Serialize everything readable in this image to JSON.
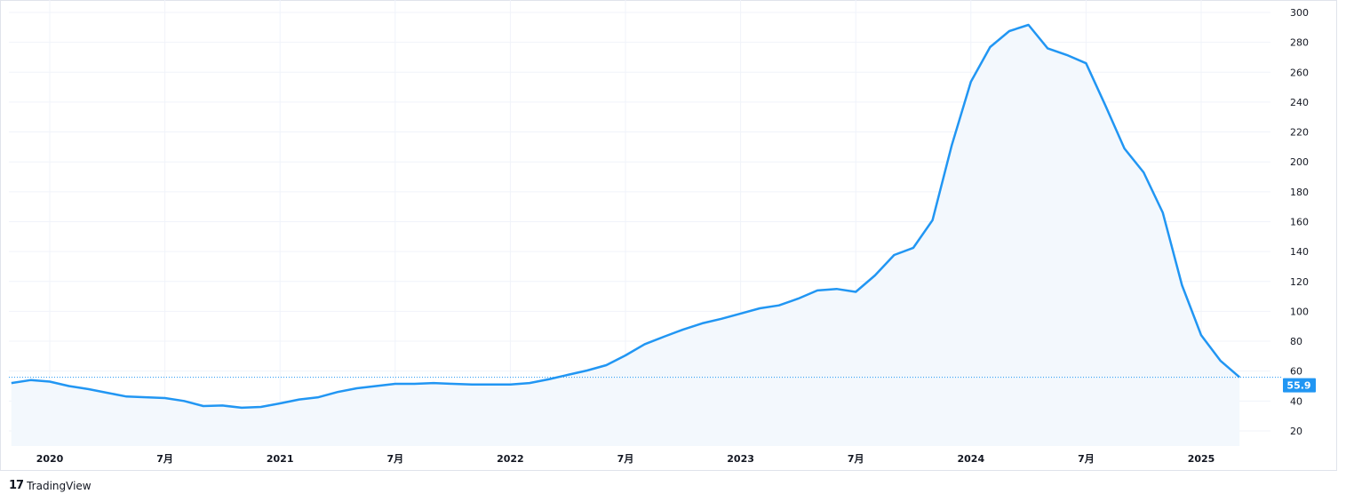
{
  "branding": {
    "logo_text": "TradingView"
  },
  "colors": {
    "line": "#2196f3",
    "fill": "#f3f8fd",
    "grid": "#f0f3fa",
    "last_label_bg": "#2196f3"
  },
  "chart_data": {
    "type": "area",
    "title": "",
    "xlabel": "",
    "ylabel": "",
    "ylim": [
      10,
      305
    ],
    "grid": true,
    "y_ticks": [
      "300",
      "280",
      "260",
      "240",
      "220",
      "200",
      "180",
      "160",
      "140",
      "120",
      "100",
      "80",
      "60",
      "40",
      "20"
    ],
    "x_ticks": [
      {
        "label": "2020",
        "date": "2020-01"
      },
      {
        "label": "7月",
        "date": "2020-07"
      },
      {
        "label": "2021",
        "date": "2021-01"
      },
      {
        "label": "7月",
        "date": "2021-07"
      },
      {
        "label": "2022",
        "date": "2022-01"
      },
      {
        "label": "7月",
        "date": "2022-07"
      },
      {
        "label": "2023",
        "date": "2023-01"
      },
      {
        "label": "7月",
        "date": "2023-07"
      },
      {
        "label": "2024",
        "date": "2024-01"
      },
      {
        "label": "7月",
        "date": "2024-07"
      },
      {
        "label": "2025",
        "date": "2025-01"
      }
    ],
    "last_value_label": "55.9",
    "series": [
      {
        "x": [
          "2019-11",
          "2019-12",
          "2020-01",
          "2020-02",
          "2020-03",
          "2020-04",
          "2020-05",
          "2020-06",
          "2020-07",
          "2020-08",
          "2020-09",
          "2020-10",
          "2020-11",
          "2020-12",
          "2021-01",
          "2021-02",
          "2021-03",
          "2021-04",
          "2021-05",
          "2021-06",
          "2021-07",
          "2021-08",
          "2021-09",
          "2021-10",
          "2021-11",
          "2021-12",
          "2022-01",
          "2022-02",
          "2022-03",
          "2022-04",
          "2022-05",
          "2022-06",
          "2022-07",
          "2022-08",
          "2022-09",
          "2022-10",
          "2022-11",
          "2022-12",
          "2023-01",
          "2023-02",
          "2023-03",
          "2023-04",
          "2023-05",
          "2023-06",
          "2023-07",
          "2023-08",
          "2023-09",
          "2023-10",
          "2023-11",
          "2023-12",
          "2024-01",
          "2024-02",
          "2024-03",
          "2024-04",
          "2024-05",
          "2024-06",
          "2024-07",
          "2024-08",
          "2024-09",
          "2024-10",
          "2024-11",
          "2024-12",
          "2025-01",
          "2025-02",
          "2025-03"
        ],
        "values": [
          52,
          54,
          53,
          50,
          48,
          45.5,
          43,
          42.5,
          42,
          40,
          36.6,
          37,
          35.5,
          36,
          38.4,
          41,
          42.5,
          46,
          48.5,
          50,
          51.5,
          51.5,
          52,
          51.5,
          51,
          51,
          51,
          52,
          54.5,
          57.5,
          60.4,
          64,
          70.5,
          78,
          83,
          87.8,
          92,
          95,
          98.5,
          102,
          104,
          108.5,
          114,
          115,
          113,
          124,
          137.7,
          142.5,
          161,
          211,
          253.6,
          276.8,
          287.5,
          291.7,
          276,
          271.5,
          266,
          238,
          209,
          193,
          166,
          117.5,
          84,
          67,
          55.9
        ]
      }
    ]
  }
}
